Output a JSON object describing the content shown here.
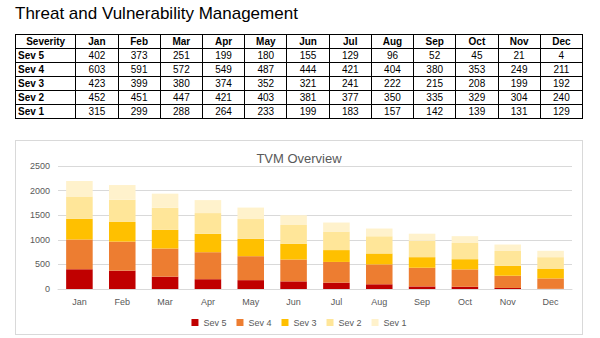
{
  "title": "Threat and Vulnerability Management",
  "table": {
    "header": [
      "Severity",
      "Jan",
      "Feb",
      "Mar",
      "Apr",
      "May",
      "Jun",
      "Jul",
      "Aug",
      "Sep",
      "Oct",
      "Nov",
      "Dec"
    ],
    "rows": [
      [
        "Sev 5",
        402,
        373,
        251,
        199,
        180,
        155,
        129,
        96,
        52,
        45,
        21,
        4
      ],
      [
        "Sev 4",
        603,
        591,
        572,
        549,
        487,
        444,
        421,
        404,
        380,
        353,
        249,
        211
      ],
      [
        "Sev 3",
        423,
        399,
        380,
        374,
        352,
        321,
        241,
        222,
        215,
        208,
        199,
        192
      ],
      [
        "Sev 2",
        452,
        451,
        447,
        421,
        403,
        381,
        377,
        350,
        335,
        329,
        304,
        240
      ],
      [
        "Sev 1",
        315,
        299,
        288,
        264,
        233,
        199,
        183,
        157,
        142,
        139,
        131,
        129
      ]
    ]
  },
  "chart_data": {
    "type": "bar",
    "title": "TVM Overview",
    "stacked": true,
    "categories": [
      "Jan",
      "Feb",
      "Mar",
      "Apr",
      "May",
      "Jun",
      "Jul",
      "Aug",
      "Sep",
      "Oct",
      "Nov",
      "Dec"
    ],
    "series": [
      {
        "name": "Sev 5",
        "color": "#c00000",
        "values": [
          402,
          373,
          251,
          199,
          180,
          155,
          129,
          96,
          52,
          45,
          21,
          4
        ]
      },
      {
        "name": "Sev 4",
        "color": "#ed7d31",
        "values": [
          603,
          591,
          572,
          549,
          487,
          444,
          421,
          404,
          380,
          353,
          249,
          211
        ]
      },
      {
        "name": "Sev 3",
        "color": "#ffc000",
        "values": [
          423,
          399,
          380,
          374,
          352,
          321,
          241,
          222,
          215,
          208,
          199,
          192
        ]
      },
      {
        "name": "Sev 2",
        "color": "#ffe699",
        "values": [
          452,
          451,
          447,
          421,
          403,
          381,
          377,
          350,
          335,
          329,
          304,
          240
        ]
      },
      {
        "name": "Sev 1",
        "color": "#fff2cc",
        "values": [
          315,
          299,
          288,
          264,
          233,
          199,
          183,
          157,
          142,
          139,
          131,
          129
        ]
      }
    ],
    "ylim": [
      0,
      2500
    ],
    "yticks": [
      0,
      500,
      1000,
      1500,
      2000,
      2500
    ],
    "grid": true,
    "legend": "bottom"
  }
}
